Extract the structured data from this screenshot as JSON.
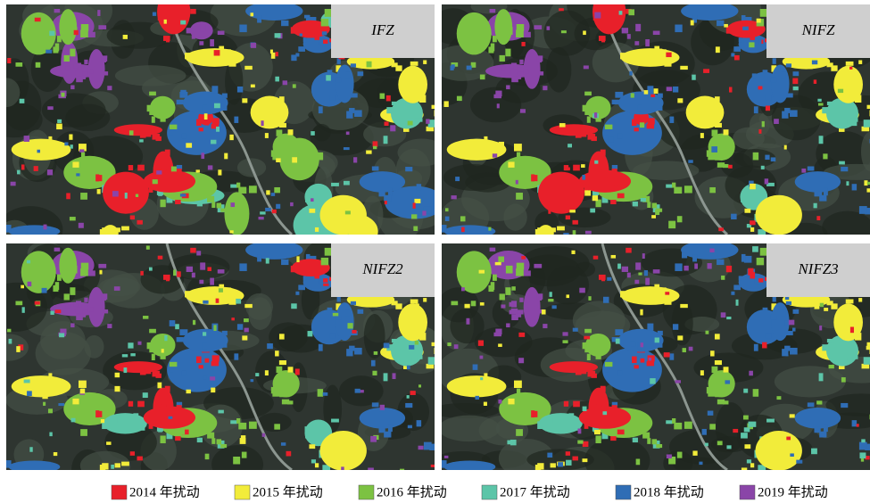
{
  "panels": [
    {
      "label": "IFZ"
    },
    {
      "label": "NIFZ"
    },
    {
      "label": "NIFZ2"
    },
    {
      "label": "NIFZ3"
    }
  ],
  "legend": [
    {
      "label": "2014 年扰动",
      "color": "#e8202a"
    },
    {
      "label": "2015 年扰动",
      "color": "#f2ec3a"
    },
    {
      "label": "2016 年扰动",
      "color": "#7cc242"
    },
    {
      "label": "2017 年扰动",
      "color": "#5cc5a8"
    },
    {
      "label": "2018 年扰动",
      "color": "#2f6db5"
    },
    {
      "label": "2019 年扰动",
      "color": "#8a45a8"
    }
  ]
}
